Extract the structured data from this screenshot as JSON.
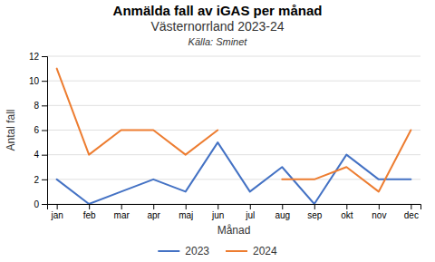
{
  "chart_data": {
    "type": "line",
    "title": "Anmälda fall av iGAS per månad",
    "subtitle": "Västernorrland 2023-24",
    "annotations": [
      "Källa: Sminet"
    ],
    "x_label": "Månad",
    "y_label": "Antal fall",
    "categories": [
      "jan",
      "feb",
      "mar",
      "apr",
      "maj",
      "jun",
      "jul",
      "aug",
      "sep",
      "okt",
      "nov",
      "dec"
    ],
    "series": [
      {
        "name": "2023",
        "color": "#4472C4",
        "values": [
          2,
          0,
          1,
          2,
          1,
          5,
          1,
          3,
          0,
          4,
          2,
          2
        ]
      },
      {
        "name": "2024",
        "color": "#ED7D31",
        "values": [
          11,
          4,
          6,
          6,
          4,
          6,
          null,
          2,
          2,
          3,
          1,
          6
        ]
      }
    ],
    "ylim": [
      0,
      12
    ],
    "yticks": [
      0,
      2,
      4,
      6,
      8,
      10,
      12
    ],
    "grid": true,
    "legend": "bottom"
  }
}
